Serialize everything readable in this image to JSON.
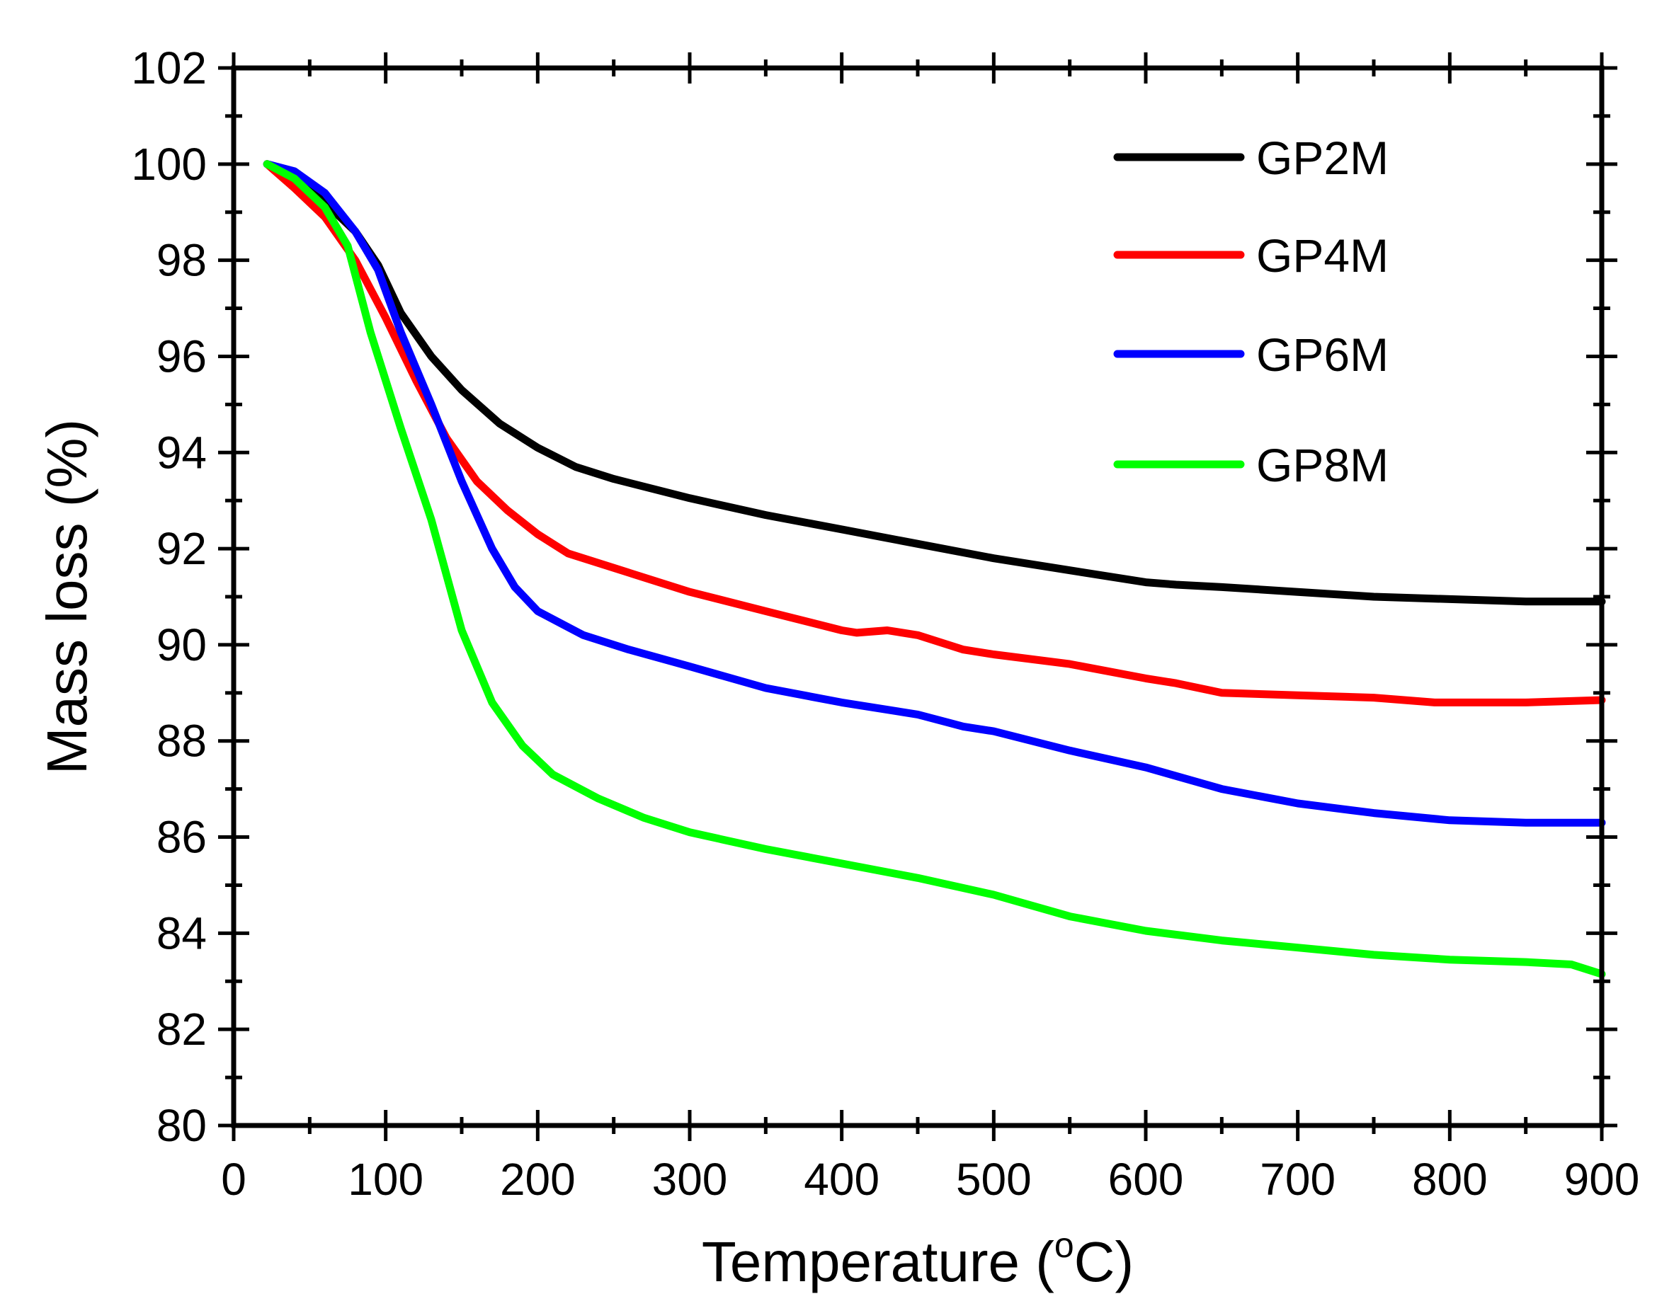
{
  "chart_data": {
    "type": "line",
    "title": "",
    "xlabel": "Temperature (°C)",
    "xlabel_parts": {
      "prefix": "Temperature (",
      "superscript": "o",
      "suffix": "C)"
    },
    "ylabel": "Mass loss (%)",
    "xlim": [
      0,
      900
    ],
    "ylim": [
      80,
      102
    ],
    "xticks": [
      0,
      100,
      200,
      300,
      400,
      500,
      600,
      700,
      800,
      900
    ],
    "yticks": [
      80,
      82,
      84,
      86,
      88,
      90,
      92,
      94,
      96,
      98,
      100,
      102
    ],
    "x_minor_step": 50,
    "y_minor_step": 1,
    "grid": false,
    "legend_position": "top-right",
    "series": [
      {
        "name": "GP2M",
        "color": "#000000",
        "points": [
          [
            22,
            100
          ],
          [
            40,
            99.7
          ],
          [
            60,
            99.2
          ],
          [
            80,
            98.6
          ],
          [
            95,
            97.9
          ],
          [
            110,
            96.9
          ],
          [
            130,
            96.0
          ],
          [
            150,
            95.3
          ],
          [
            175,
            94.6
          ],
          [
            200,
            94.1
          ],
          [
            225,
            93.7
          ],
          [
            250,
            93.45
          ],
          [
            300,
            93.05
          ],
          [
            350,
            92.7
          ],
          [
            400,
            92.4
          ],
          [
            450,
            92.1
          ],
          [
            500,
            91.8
          ],
          [
            550,
            91.55
          ],
          [
            600,
            91.3
          ],
          [
            620,
            91.25
          ],
          [
            650,
            91.2
          ],
          [
            700,
            91.1
          ],
          [
            750,
            91.0
          ],
          [
            800,
            90.95
          ],
          [
            850,
            90.9
          ],
          [
            900,
            90.9
          ]
        ]
      },
      {
        "name": "GP4M",
        "color": "#ff0000",
        "points": [
          [
            22,
            100
          ],
          [
            40,
            99.5
          ],
          [
            60,
            98.9
          ],
          [
            80,
            98.0
          ],
          [
            100,
            96.8
          ],
          [
            120,
            95.5
          ],
          [
            140,
            94.3
          ],
          [
            160,
            93.4
          ],
          [
            180,
            92.8
          ],
          [
            200,
            92.3
          ],
          [
            220,
            91.9
          ],
          [
            250,
            91.6
          ],
          [
            300,
            91.1
          ],
          [
            350,
            90.7
          ],
          [
            400,
            90.3
          ],
          [
            410,
            90.25
          ],
          [
            430,
            90.3
          ],
          [
            450,
            90.2
          ],
          [
            480,
            89.9
          ],
          [
            500,
            89.8
          ],
          [
            550,
            89.6
          ],
          [
            600,
            89.3
          ],
          [
            620,
            89.2
          ],
          [
            650,
            89.0
          ],
          [
            700,
            88.95
          ],
          [
            750,
            88.9
          ],
          [
            790,
            88.8
          ],
          [
            850,
            88.8
          ],
          [
            900,
            88.85
          ]
        ]
      },
      {
        "name": "GP6M",
        "color": "#0000ff",
        "points": [
          [
            22,
            100
          ],
          [
            40,
            99.85
          ],
          [
            60,
            99.4
          ],
          [
            80,
            98.6
          ],
          [
            95,
            97.8
          ],
          [
            110,
            96.5
          ],
          [
            130,
            95.0
          ],
          [
            150,
            93.4
          ],
          [
            170,
            92.0
          ],
          [
            185,
            91.2
          ],
          [
            200,
            90.7
          ],
          [
            230,
            90.2
          ],
          [
            260,
            89.9
          ],
          [
            300,
            89.55
          ],
          [
            350,
            89.1
          ],
          [
            400,
            88.8
          ],
          [
            450,
            88.55
          ],
          [
            480,
            88.3
          ],
          [
            500,
            88.2
          ],
          [
            550,
            87.8
          ],
          [
            600,
            87.45
          ],
          [
            650,
            87.0
          ],
          [
            700,
            86.7
          ],
          [
            750,
            86.5
          ],
          [
            800,
            86.35
          ],
          [
            850,
            86.3
          ],
          [
            900,
            86.3
          ]
        ]
      },
      {
        "name": "GP8M",
        "color": "#00ff00",
        "points": [
          [
            22,
            100
          ],
          [
            40,
            99.7
          ],
          [
            60,
            99.1
          ],
          [
            75,
            98.3
          ],
          [
            90,
            96.5
          ],
          [
            110,
            94.5
          ],
          [
            130,
            92.6
          ],
          [
            150,
            90.3
          ],
          [
            170,
            88.8
          ],
          [
            190,
            87.9
          ],
          [
            210,
            87.3
          ],
          [
            240,
            86.8
          ],
          [
            270,
            86.4
          ],
          [
            300,
            86.1
          ],
          [
            350,
            85.75
          ],
          [
            400,
            85.45
          ],
          [
            450,
            85.15
          ],
          [
            500,
            84.8
          ],
          [
            550,
            84.35
          ],
          [
            600,
            84.05
          ],
          [
            650,
            83.85
          ],
          [
            700,
            83.7
          ],
          [
            750,
            83.55
          ],
          [
            800,
            83.45
          ],
          [
            850,
            83.4
          ],
          [
            880,
            83.35
          ],
          [
            900,
            83.15
          ]
        ]
      }
    ]
  }
}
